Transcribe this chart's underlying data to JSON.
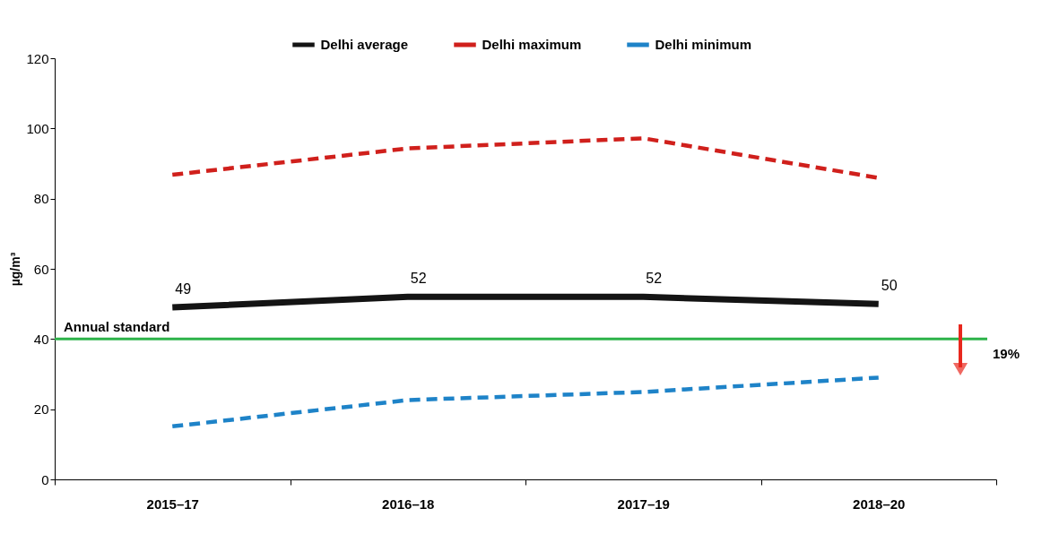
{
  "chart_data": {
    "type": "line",
    "ylabel": "µg/m³",
    "categories": [
      "2015–17",
      "2016–18",
      "2017–19",
      "2018–20"
    ],
    "series": [
      {
        "name": "Delhi average",
        "color": "#141414",
        "line_style": "solid",
        "values": [
          49,
          52,
          52,
          50
        ],
        "value_labels": [
          "49",
          "52",
          "52",
          "50"
        ]
      },
      {
        "name": "Delhi maximum",
        "color": "#d0201c",
        "line_style": "dashed",
        "values": [
          86.8,
          94.3,
          97.2,
          85.9
        ]
      },
      {
        "name": "Delhi minimum",
        "color": "#1e83c8",
        "line_style": "dashed",
        "values": [
          15.1,
          22.6,
          24.9,
          29.0
        ]
      }
    ],
    "ylim": [
      0,
      120
    ],
    "yticks": [
      0,
      20,
      40,
      60,
      80,
      100,
      120
    ],
    "ref_lines": [
      {
        "axis": "y",
        "value": 40,
        "label": "Annual standard",
        "color": "#2db34a",
        "line_style": "solid"
      }
    ],
    "annotations": [
      "19%"
    ],
    "grid": false,
    "legend": "top",
    "marker": "none"
  }
}
